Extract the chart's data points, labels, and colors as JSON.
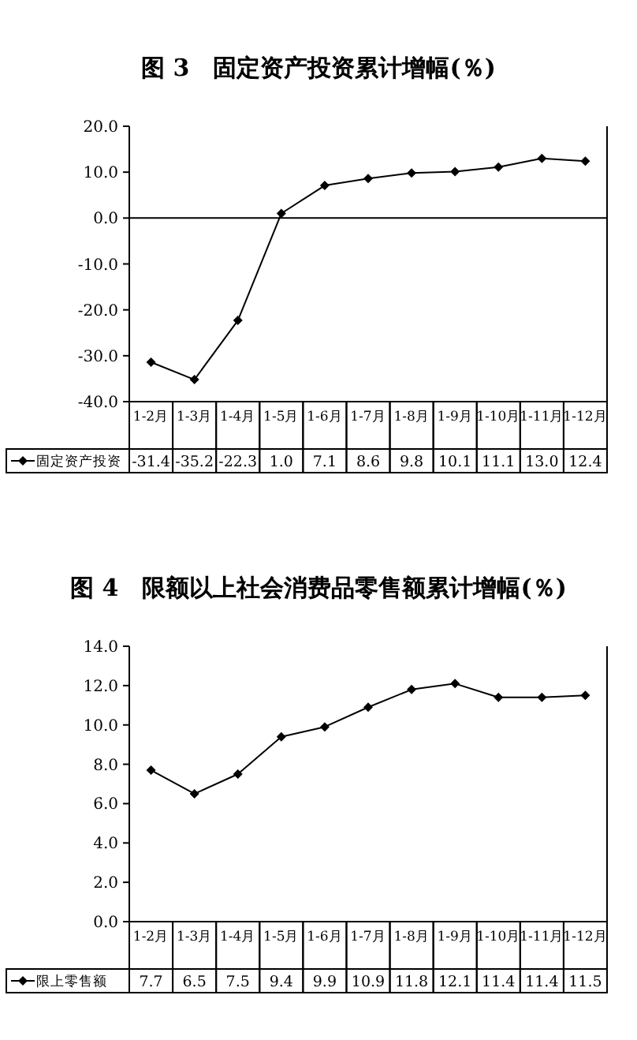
{
  "chart_data": [
    {
      "type": "line",
      "title": "图 3　固定资产投资累计增幅(％)",
      "categories": [
        "1-2月",
        "1-3月",
        "1-4月",
        "1-5月",
        "1-6月",
        "1-7月",
        "1-8月",
        "1-9月",
        "1-10月",
        "1-11月",
        "1-12月"
      ],
      "series": [
        {
          "name": "固定资产投资",
          "color": "#000000",
          "values": [
            -31.4,
            -35.2,
            -22.3,
            1.0,
            7.1,
            8.6,
            9.8,
            10.1,
            11.1,
            13.0,
            12.4
          ],
          "value_labels": [
            "-31.4",
            "-35.2",
            "-22.3",
            "1.0",
            "7.1",
            "8.6",
            "9.8",
            "10.1",
            "11.1",
            "13.0",
            "12.4"
          ]
        }
      ],
      "ylim": [
        -40,
        20
      ],
      "yticks": [
        {
          "value": -40,
          "label": "-40.0"
        },
        {
          "value": -30,
          "label": "-30.0"
        },
        {
          "value": -20,
          "label": "-20.0"
        },
        {
          "value": -10,
          "label": "-10.0"
        },
        {
          "value": 0,
          "label": "0.0"
        },
        {
          "value": 10,
          "label": "10.0"
        },
        {
          "value": 20,
          "label": "20.0"
        }
      ],
      "ref_lines": [
        {
          "axis": "y",
          "value": 0
        }
      ],
      "marker": "diamond",
      "legend": "bottom",
      "grid": false
    },
    {
      "type": "line",
      "title": "图 4　限额以上社会消费品零售额累计增幅(％)",
      "categories": [
        "1-2月",
        "1-3月",
        "1-4月",
        "1-5月",
        "1-6月",
        "1-7月",
        "1-8月",
        "1-9月",
        "1-10月",
        "1-11月",
        "1-12月"
      ],
      "series": [
        {
          "name": "限上零售额",
          "color": "#000000",
          "values": [
            7.7,
            6.5,
            7.5,
            9.4,
            9.9,
            10.9,
            11.8,
            12.1,
            11.4,
            11.4,
            11.5
          ],
          "value_labels": [
            "7.7",
            "6.5",
            "7.5",
            "9.4",
            "9.9",
            "10.9",
            "11.8",
            "12.1",
            "11.4",
            "11.4",
            "11.5"
          ]
        }
      ],
      "ylim": [
        0,
        14
      ],
      "yticks": [
        {
          "value": 0,
          "label": "0.0"
        },
        {
          "value": 2,
          "label": "2.0"
        },
        {
          "value": 4,
          "label": "4.0"
        },
        {
          "value": 6,
          "label": "6.0"
        },
        {
          "value": 8,
          "label": "8.0"
        },
        {
          "value": 10,
          "label": "10.0"
        },
        {
          "value": 12,
          "label": "12.0"
        },
        {
          "value": 14,
          "label": "14.0"
        }
      ],
      "marker": "diamond",
      "legend": "bottom",
      "grid": false
    }
  ]
}
